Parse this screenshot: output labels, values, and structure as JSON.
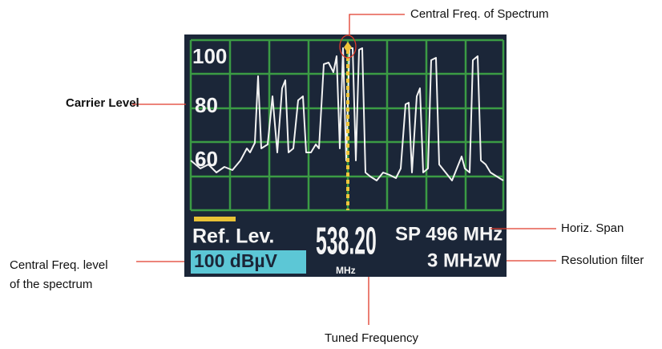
{
  "annotations": {
    "central_freq_of_spectrum": "Central Freq. of Spectrum",
    "carrier_level": "Carrier Level",
    "horiz_span": "Horiz. Span",
    "resolution_filter": "Resolution filter",
    "central_freq_level": [
      "Central Freq. level",
      "of the spectrum"
    ],
    "tuned_frequency": "Tuned Frequency"
  },
  "screen": {
    "level_labels": [
      "100",
      "80",
      "60"
    ],
    "ref_lev_label": "Ref. Lev.",
    "ref_lev_value": "100 dBµV",
    "tuned_freq": "538.20",
    "tuned_unit": "MHz",
    "span": "SP 496 MHz",
    "rbw": "3 MHzW"
  }
}
